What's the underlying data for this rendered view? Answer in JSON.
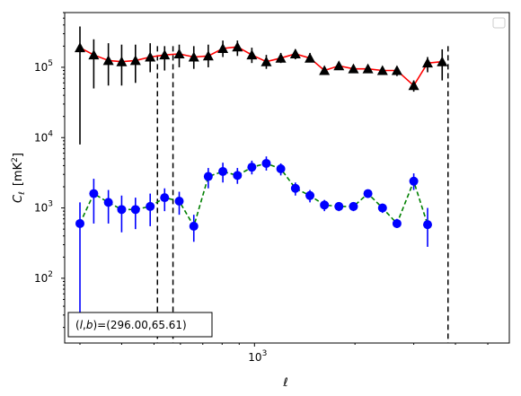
{
  "chart_data": {
    "type": "scatter",
    "xlabel": "ℓ",
    "ylabel_main": "C",
    "ylabel_sub": "ℓ",
    "ylabel_unit": "[mK",
    "ylabel_unit_sup": "2",
    "ylabel_unit_end": "]",
    "xscale": "log",
    "yscale": "log",
    "xlim": [
      270,
      5800
    ],
    "ylim": [
      12,
      600000
    ],
    "x_tick_labels": [
      {
        "base": "10",
        "exp": "3",
        "value": 1000
      }
    ],
    "y_tick_labels": [
      {
        "base": "10",
        "exp": "2",
        "value": 100
      },
      {
        "base": "10",
        "exp": "3",
        "value": 1000
      },
      {
        "base": "10",
        "exp": "4",
        "value": 10000
      },
      {
        "base": "10",
        "exp": "5",
        "value": 100000
      }
    ],
    "vlines": [
      512,
      570,
      3800
    ],
    "annotation": "(l,b)=(296.00,65.61)",
    "annotation_parts": {
      "open": "(",
      "l": "l",
      "comma": ",",
      "b": "b",
      "rest": ")=(296.00,65.61)"
    },
    "legend": {
      "placement": "top-right",
      "entries": []
    },
    "series": [
      {
        "marker": "triangle",
        "line_color": "#ff0000",
        "line_style": "solid",
        "marker_color": "#000000",
        "error_color": "#000000",
        "x": [
          300,
          330,
          365,
          400,
          440,
          487,
          538,
          595,
          658,
          727,
          804,
          889,
          982,
          1085,
          1199,
          1326,
          1466,
          1620,
          1790,
          1979,
          2187,
          2418,
          2672,
          3000,
          3300,
          3650,
          4000
        ],
        "y": [
          190000,
          150000,
          125000,
          120000,
          125000,
          140000,
          150000,
          155000,
          140000,
          145000,
          185000,
          195000,
          150000,
          120000,
          135000,
          155000,
          135000,
          90000,
          105000,
          95000,
          95000,
          90000,
          90000,
          55000,
          115000,
          120000,
          0
        ],
        "ylo": [
          8000,
          50000,
          55000,
          55000,
          60000,
          85000,
          90000,
          100000,
          95000,
          100000,
          140000,
          145000,
          115000,
          95000,
          115000,
          130000,
          120000,
          80000,
          95000,
          85000,
          85000,
          80000,
          75000,
          45000,
          85000,
          65000,
          0
        ],
        "yhi": [
          380000,
          250000,
          220000,
          210000,
          210000,
          220000,
          200000,
          210000,
          200000,
          210000,
          240000,
          240000,
          190000,
          150000,
          160000,
          180000,
          160000,
          100000,
          115000,
          105000,
          105000,
          100000,
          100000,
          65000,
          140000,
          180000,
          0
        ]
      },
      {
        "marker": "circle",
        "line_color": "#008000",
        "line_style": "dashed",
        "marker_color": "#0000ff",
        "error_color": "#0000ff",
        "x": [
          300,
          330,
          365,
          400,
          440,
          487,
          538,
          595,
          658,
          727,
          804,
          889,
          982,
          1085,
          1199,
          1326,
          1466,
          1620,
          1790,
          1979,
          2187,
          2418,
          2672,
          3000,
          3300,
          3650,
          4000
        ],
        "y": [
          600,
          1600,
          1200,
          950,
          950,
          1050,
          1400,
          1250,
          550,
          2800,
          3300,
          2900,
          3800,
          4300,
          3600,
          1900,
          1500,
          1100,
          1050,
          1050,
          1600,
          1000,
          600,
          2400,
          580,
          0,
          0
        ],
        "ylo": [
          20,
          600,
          600,
          450,
          500,
          550,
          900,
          800,
          330,
          1900,
          2300,
          2200,
          3000,
          3400,
          2900,
          1500,
          1200,
          900,
          900,
          900,
          1400,
          850,
          520,
          1800,
          280,
          0,
          0
        ],
        "yhi": [
          1200,
          2600,
          1800,
          1500,
          1400,
          1600,
          1900,
          1700,
          800,
          3700,
          4400,
          3700,
          4700,
          5400,
          4300,
          2300,
          1800,
          1300,
          1200,
          1200,
          1800,
          1150,
          700,
          3100,
          1000,
          0,
          0
        ]
      }
    ]
  }
}
